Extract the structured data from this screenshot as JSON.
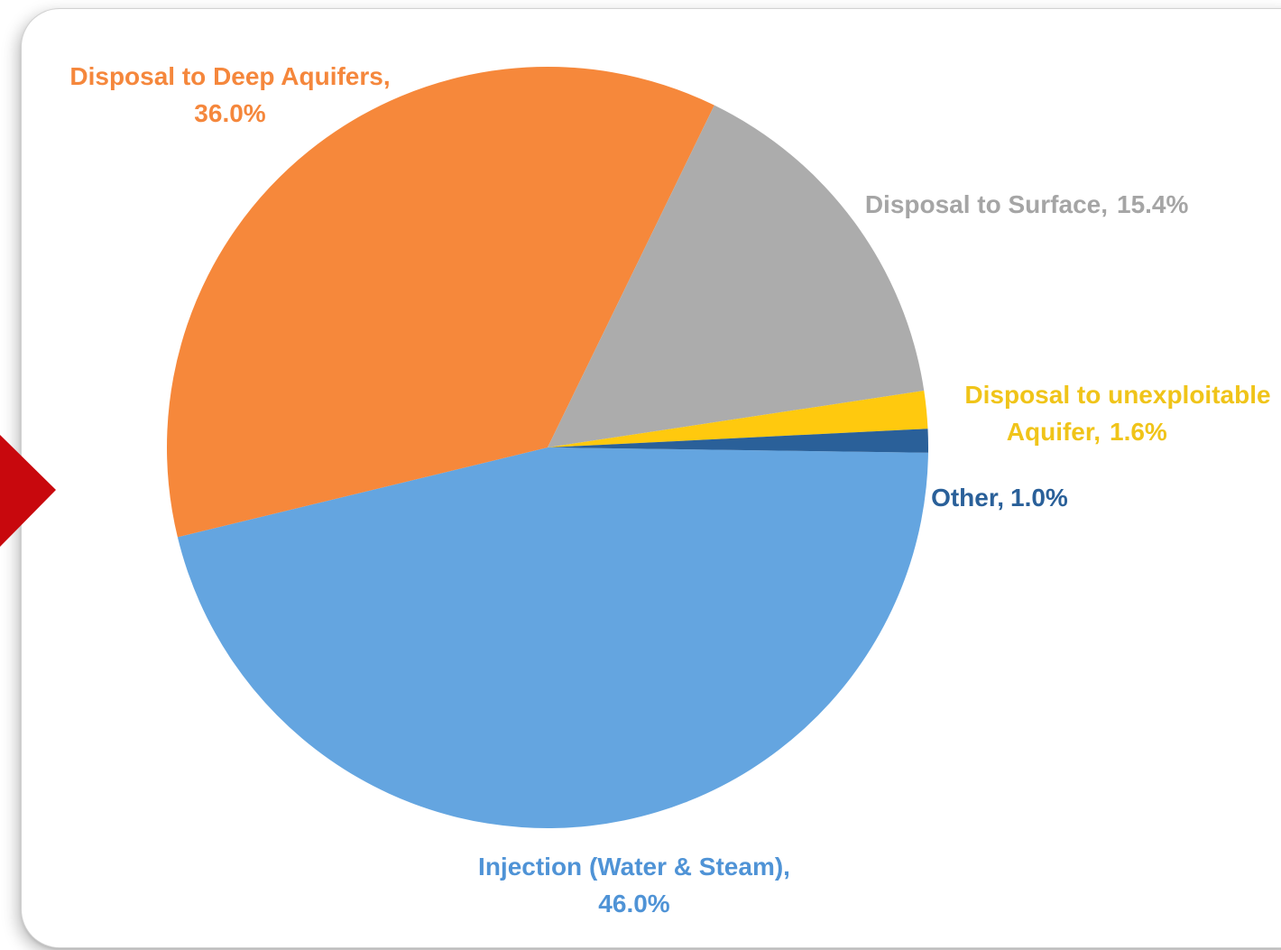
{
  "chart_data": {
    "type": "pie",
    "slices": [
      {
        "label": "Injection (Water & Steam),",
        "pct_text": "46.0%",
        "value": 46.0,
        "color": "#64a5e0"
      },
      {
        "label": "Disposal to Deep Aquifers,",
        "pct_text": "36.0%",
        "value": 36.0,
        "color": "#f6883b"
      },
      {
        "label": "Disposal to Surface,",
        "pct_text": "15.4%",
        "value": 15.4,
        "color": "#acacac"
      },
      {
        "label": "Disposal to unexploitable",
        "label2": "Aquifer,",
        "pct_text": "1.6%",
        "value": 1.6,
        "color": "#ffc90e"
      },
      {
        "label": "Other,",
        "pct_text": "1.0%",
        "value": 1.0,
        "color": "#2a6099"
      }
    ],
    "label_colors": {
      "injection": "#4f93d6",
      "deep_aquifers": "#f5873c",
      "surface": "#a5a5a5",
      "unexploitable": "#f0c419",
      "other": "#2a6099"
    }
  },
  "decoration": {
    "arrow_color": "#c8080d"
  }
}
